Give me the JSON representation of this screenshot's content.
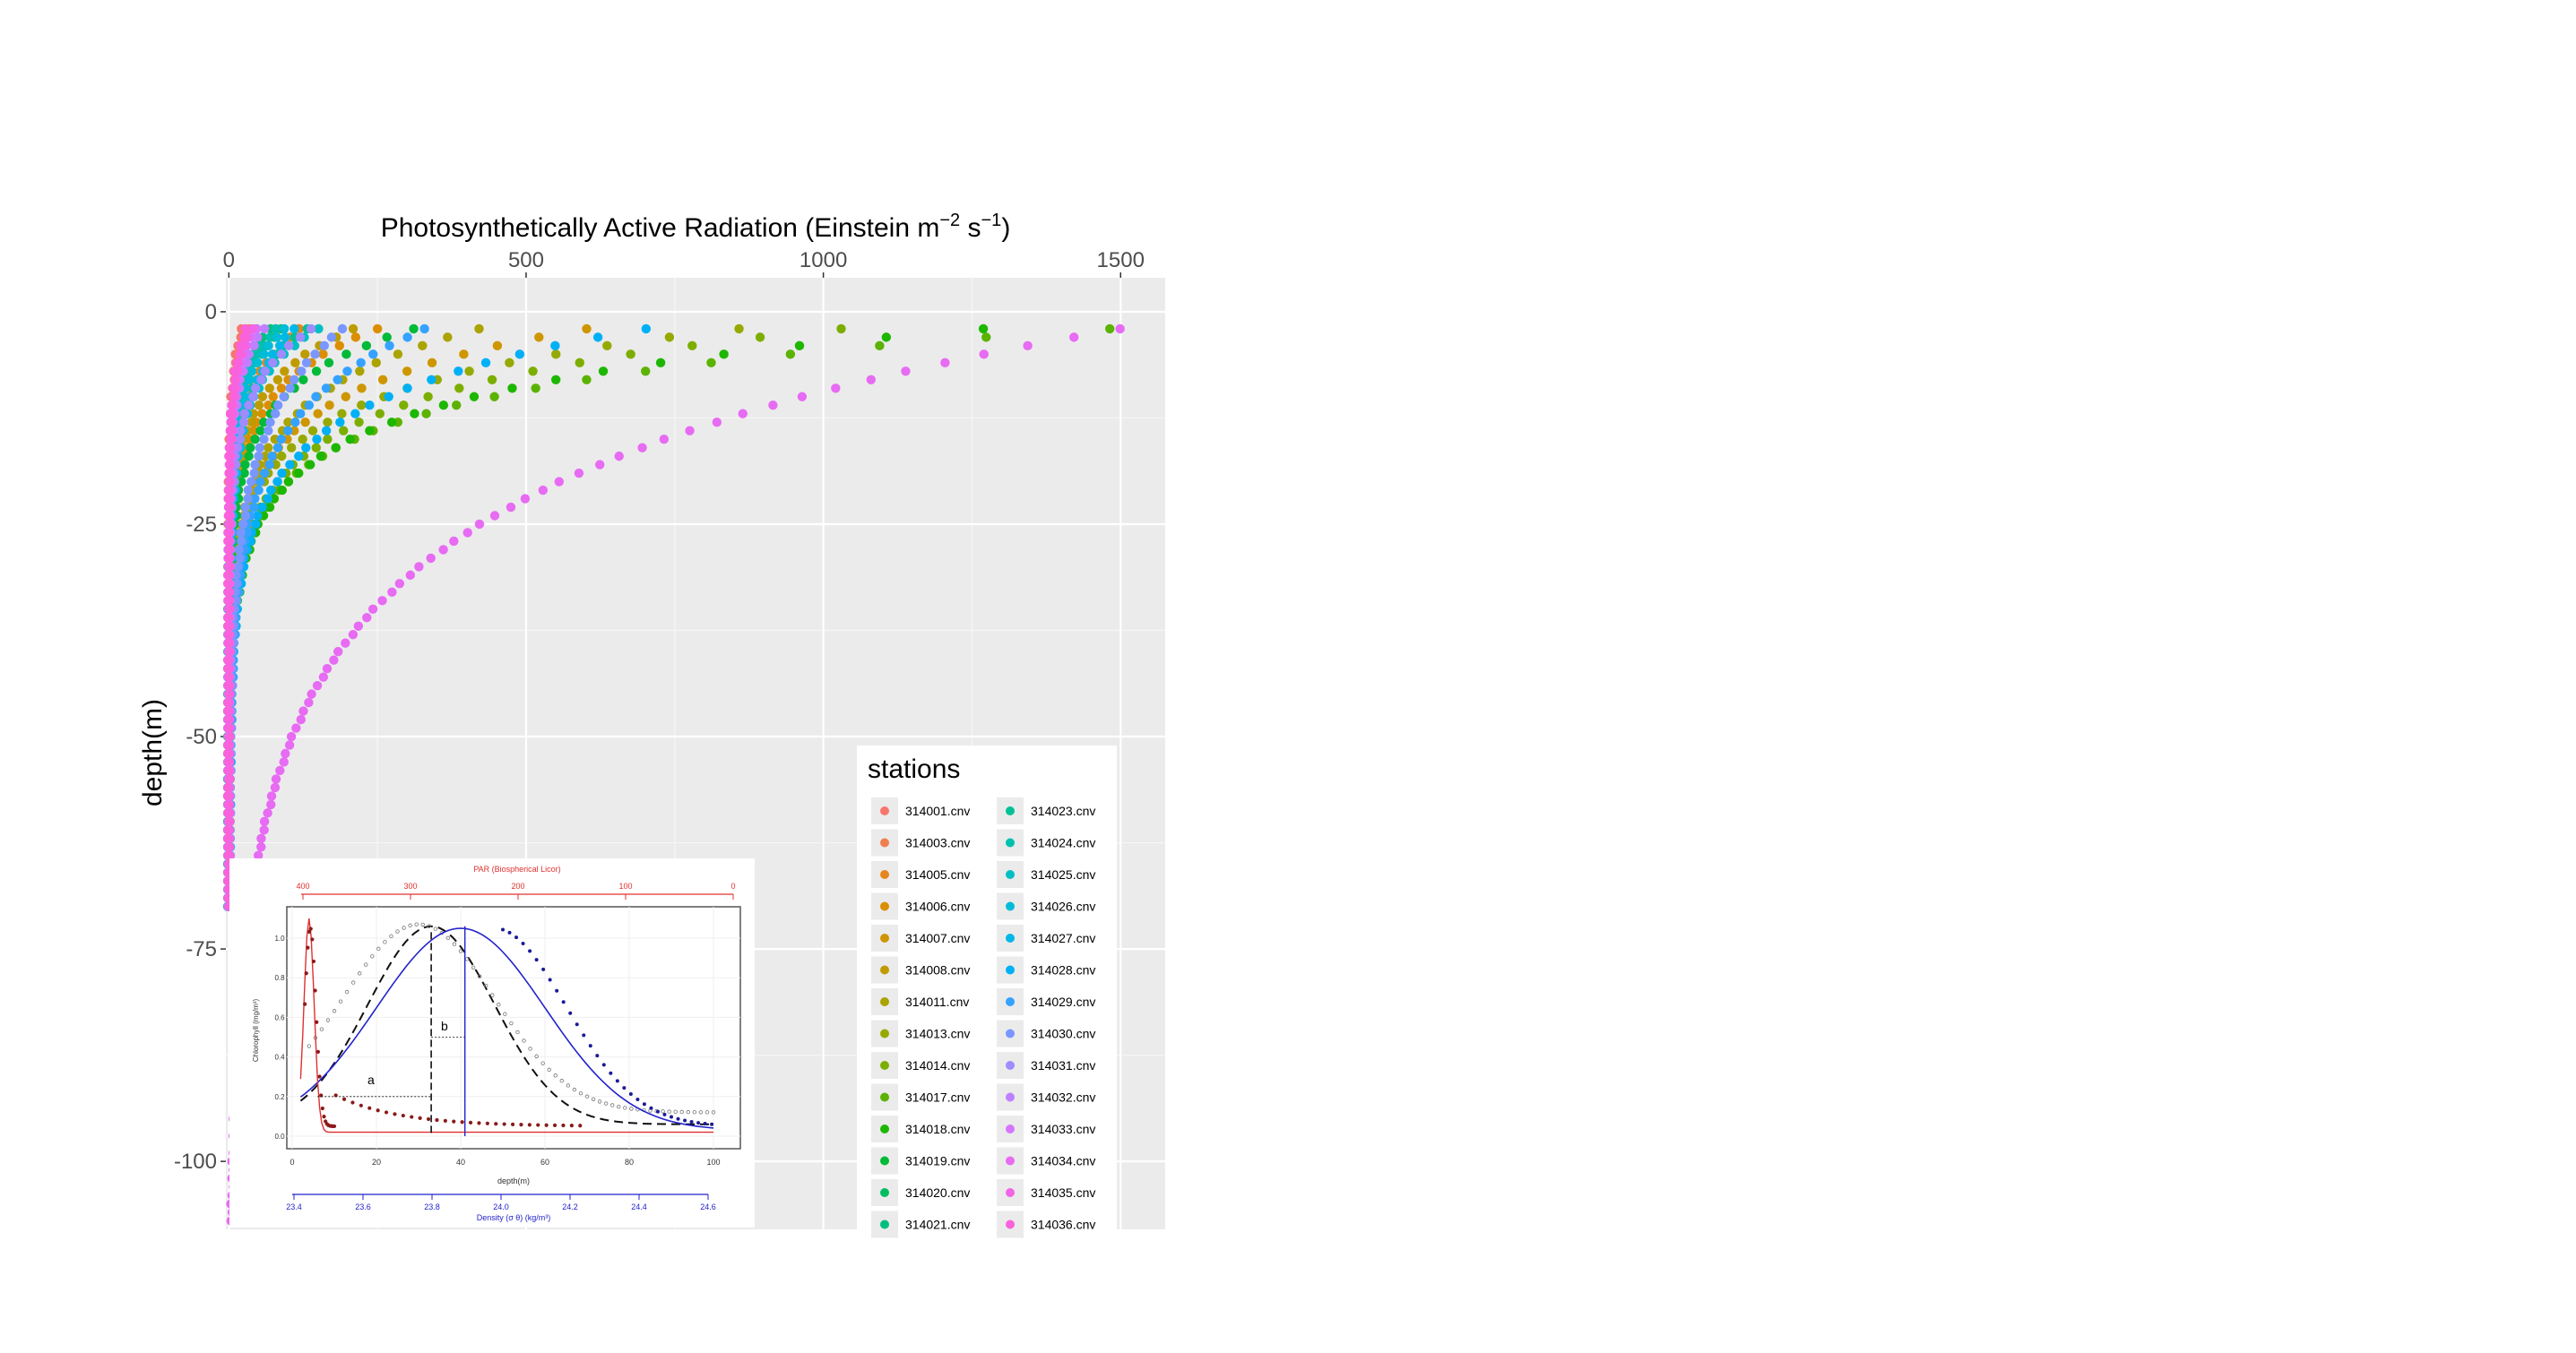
{
  "chart_data": {
    "type": "scatter",
    "title": "",
    "xlabel_main": "Photosynthetically Active Radiation (Einstein m",
    "xlabel_sup1": "−2",
    "xlabel_mid": " s",
    "xlabel_sup2": "−1",
    "xlabel_end": ")",
    "ylabel": "depth(m)",
    "x_axis_position": "top",
    "xlim": [
      -5,
      1575
    ],
    "ylim": [
      -108,
      4
    ],
    "x_ticks": [
      0,
      500,
      1000,
      1500
    ],
    "x_tick_labels": [
      "0",
      "500",
      "1000",
      "1500"
    ],
    "y_ticks": [
      0,
      -25,
      -50,
      -75,
      -100
    ],
    "y_tick_labels": [
      "0",
      "-25",
      "-50",
      "-75",
      "-100"
    ],
    "grid": true,
    "legend_title": "stations",
    "legend_position": "bottom-right",
    "series": [
      {
        "name": "314001.cnv",
        "color": "#F8766D",
        "surface": 22,
        "k": 0.18
      },
      {
        "name": "314003.cnv",
        "color": "#F07F4F",
        "surface": 34,
        "k": 0.17
      },
      {
        "name": "314005.cnv",
        "color": "#E7861B",
        "surface": 120,
        "k": 0.16
      },
      {
        "name": "314006.cnv",
        "color": "#DB8E00",
        "surface": 250,
        "k": 0.15
      },
      {
        "name": "314007.cnv",
        "color": "#CE9600",
        "surface": 600,
        "k": 0.14
      },
      {
        "name": "314008.cnv",
        "color": "#BE9C00",
        "surface": 210,
        "k": 0.16
      },
      {
        "name": "314011.cnv",
        "color": "#ABA300",
        "surface": 420,
        "k": 0.13
      },
      {
        "name": "314013.cnv",
        "color": "#96A900",
        "surface": 860,
        "k": 0.15
      },
      {
        "name": "314014.cnv",
        "color": "#7CAE00",
        "surface": 1030,
        "k": 0.14
      },
      {
        "name": "314017.cnv",
        "color": "#5BB300",
        "surface": 1480,
        "k": 0.15
      },
      {
        "name": "314018.cnv",
        "color": "#1DB700",
        "surface": 1270,
        "k": 0.14
      },
      {
        "name": "314019.cnv",
        "color": "#00BA38",
        "surface": 310,
        "k": 0.15
      },
      {
        "name": "314020.cnv",
        "color": "#00BD5F",
        "surface": 90,
        "k": 0.17
      },
      {
        "name": "314021.cnv",
        "color": "#00BF7D",
        "surface": 70,
        "k": 0.18
      },
      {
        "name": "314023.cnv",
        "color": "#00C097",
        "surface": 130,
        "k": 0.16
      },
      {
        "name": "314024.cnv",
        "color": "#00C0AF",
        "surface": 80,
        "k": 0.17
      },
      {
        "name": "314025.cnv",
        "color": "#00BFC4",
        "surface": 150,
        "k": 0.16
      },
      {
        "name": "314026.cnv",
        "color": "#00BCD8",
        "surface": 95,
        "k": 0.17
      },
      {
        "name": "314027.cnv",
        "color": "#00B8E7",
        "surface": 110,
        "k": 0.13
      },
      {
        "name": "314028.cnv",
        "color": "#00B0F6",
        "surface": 700,
        "k": 0.12
      },
      {
        "name": "314029.cnv",
        "color": "#35A2FF",
        "surface": 330,
        "k": 0.1
      },
      {
        "name": "314030.cnv",
        "color": "#7997FF",
        "surface": 190,
        "k": 0.09
      },
      {
        "name": "314031.cnv",
        "color": "#9F8CFF",
        "surface": 140,
        "k": 0.16
      },
      {
        "name": "314032.cnv",
        "color": "#BE80FF",
        "surface": 60,
        "k": 0.18
      },
      {
        "name": "314033.cnv",
        "color": "#D575FE",
        "surface": 45,
        "k": 0.17
      },
      {
        "name": "314034.cnv",
        "color": "#E76BF3",
        "surface": 1500,
        "k": 0.055
      },
      {
        "name": "314035.cnv",
        "color": "#F265E7",
        "surface": 40,
        "k": 0.2
      },
      {
        "name": "314036.cnv",
        "color": "#FA62DB",
        "surface": 30,
        "k": 0.19
      }
    ],
    "legend_column_1": [
      "314001.cnv",
      "314003.cnv",
      "314005.cnv",
      "314006.cnv",
      "314007.cnv",
      "314008.cnv",
      "314011.cnv",
      "314013.cnv",
      "314014.cnv",
      "314017.cnv",
      "314018.cnv",
      "314019.cnv",
      "314020.cnv",
      "314021.cnv"
    ],
    "legend_column_2": [
      "314023.cnv",
      "314024.cnv",
      "314025.cnv",
      "314026.cnv",
      "314027.cnv",
      "314028.cnv",
      "314029.cnv",
      "314030.cnv",
      "314031.cnv",
      "314032.cnv",
      "314033.cnv",
      "314034.cnv",
      "314035.cnv",
      "314036.cnv"
    ]
  },
  "inset": {
    "top_axis_label": "PAR (Biospherical Licor)",
    "top_ticks": [
      "400",
      "300",
      "200",
      "100",
      "0"
    ],
    "bottom_axis_label": "depth(m)",
    "bottom_ticks": [
      "0",
      "20",
      "40",
      "60",
      "80",
      "100"
    ],
    "density_axis_label": "Density (σ θ) (kg/m³)",
    "density_ticks": [
      "23.4",
      "23.6",
      "23.8",
      "24.0",
      "24.2",
      "24.4",
      "24.6"
    ],
    "left_axis_label": "Chlorophyll (mg/m³)",
    "left_ticks": [
      "1.0",
      "0.8",
      "0.6",
      "0.4",
      "0.2",
      "0.0"
    ],
    "marker_a": "a",
    "marker_b": "b"
  }
}
